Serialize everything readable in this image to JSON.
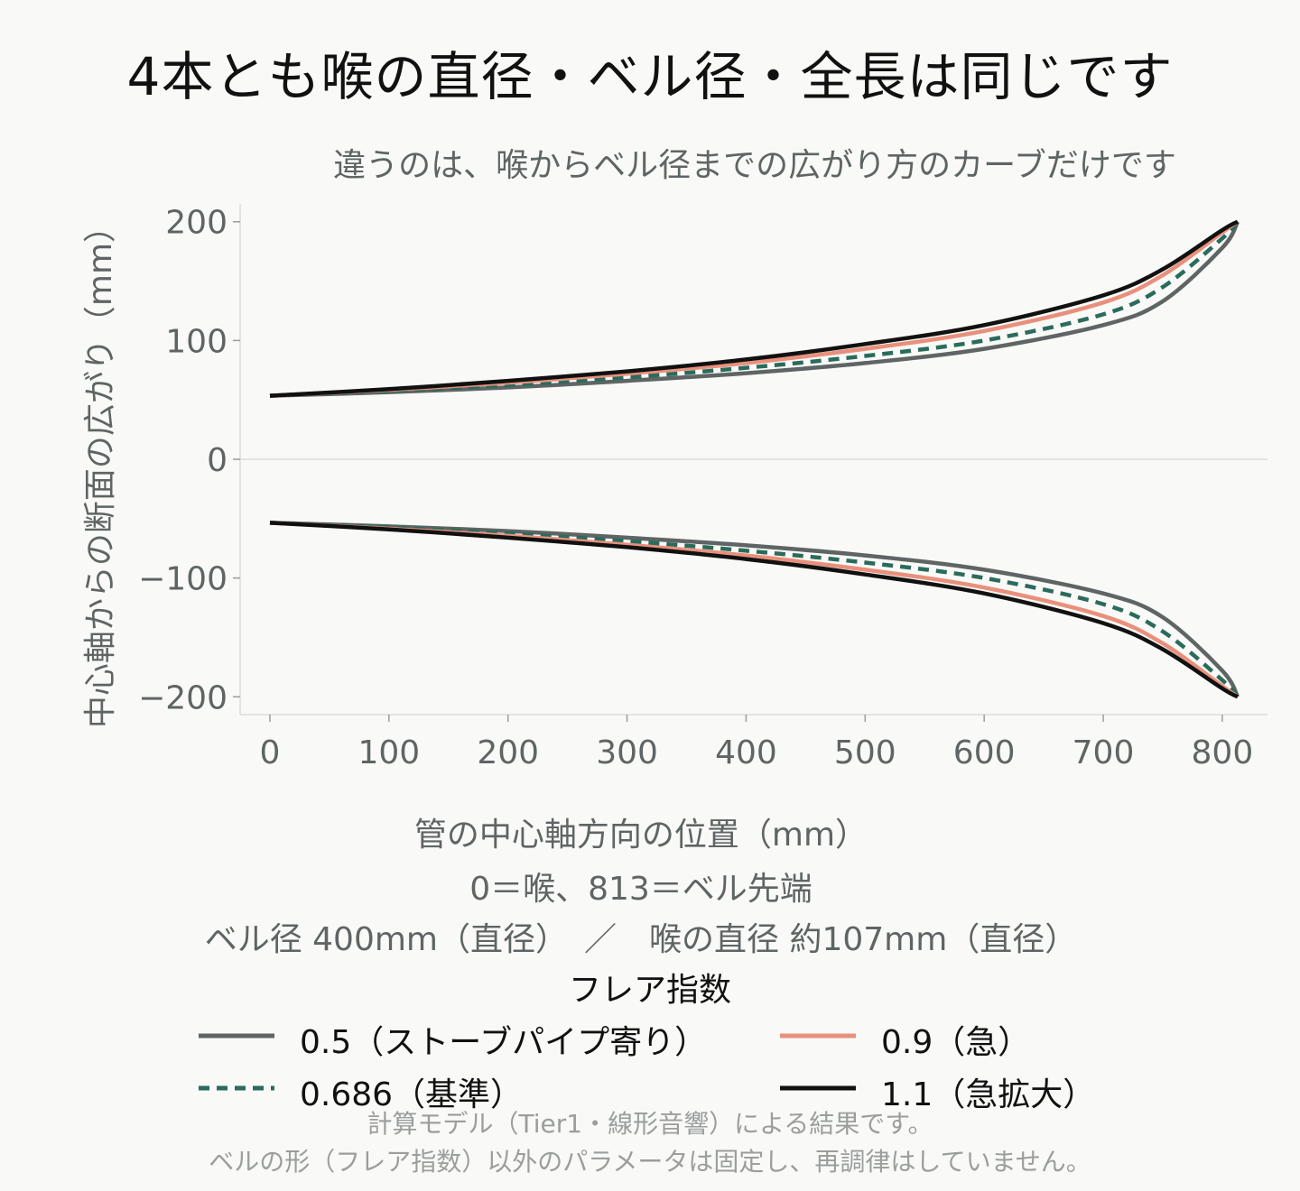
{
  "title": "4本とも喉の直径・ベル径・全長は同じです",
  "subtitle": "違うのは、喉からベル径までの広がり方のカーブだけです",
  "legend": {
    "title": "フレア指数",
    "items": [
      {
        "label": "0.5（ストーブパイプ寄り）",
        "color": "#5e6564",
        "dash": "solid"
      },
      {
        "label": "0.686（基準）",
        "color": "#2a6b5c",
        "dash": "dashed"
      },
      {
        "label": "0.9（急）",
        "color": "#e8907c",
        "dash": "solid"
      },
      {
        "label": "1.1（急拡大）",
        "color": "#111111",
        "dash": "solid"
      }
    ]
  },
  "caption": {
    "line1": "計算モデル（Tier1・線形音響）による結果です。",
    "line2": "ベルの形（フレア指数）以外のパラメータは固定し、再調律はしていません。"
  },
  "chart_data": {
    "type": "line",
    "title": "4本とも喉の直径・ベル径・全長は同じです",
    "subtitle": "違うのは、喉からベル径までの広がり方のカーブだけです",
    "xlabel_lines": [
      "管の中心軸方向の位置（mm）",
      "0＝喉、813＝ベル先端",
      "ベル径 400mm（直径）　／　喉の直径 約107mm（直径）"
    ],
    "ylabel": "中心軸からの断面の広がり（mm）",
    "xlim": [
      -25,
      838
    ],
    "ylim": [
      -215,
      215
    ],
    "xticks": [
      0,
      100,
      200,
      300,
      400,
      500,
      600,
      700,
      800
    ],
    "yticks": [
      200,
      100,
      0,
      -100,
      -200
    ],
    "ytick_labels": [
      "200",
      "100",
      "0",
      "−100",
      "−200"
    ],
    "zero_line": true,
    "grid": false,
    "legend_position": "bottom",
    "x": [
      0,
      100,
      200,
      300,
      400,
      500,
      600,
      700,
      750,
      800,
      813
    ],
    "series": [
      {
        "name": "0.5（ストーブパイプ寄り）",
        "color": "#5e6564",
        "dash": "solid",
        "upper": [
          53.5,
          56.5,
          60.5,
          66,
          72.5,
          81,
          93,
          113,
          133,
          178,
          200
        ]
      },
      {
        "name": "0.686（基準）",
        "color": "#2a6b5c",
        "dash": "dashed",
        "upper": [
          53.5,
          57.5,
          62.5,
          69,
          77,
          87,
          100,
          122,
          145,
          186,
          200
        ]
      },
      {
        "name": "0.9（急）",
        "color": "#e8907c",
        "dash": "solid",
        "upper": [
          53.5,
          58.5,
          64.5,
          72,
          81,
          93,
          108,
          132,
          155,
          191,
          200
        ]
      },
      {
        "name": "1.1（急拡大）",
        "color": "#111111",
        "dash": "solid",
        "upper": [
          53.5,
          59,
          66,
          74,
          84,
          97,
          113,
          138,
          160,
          193,
          200
        ]
      }
    ]
  }
}
